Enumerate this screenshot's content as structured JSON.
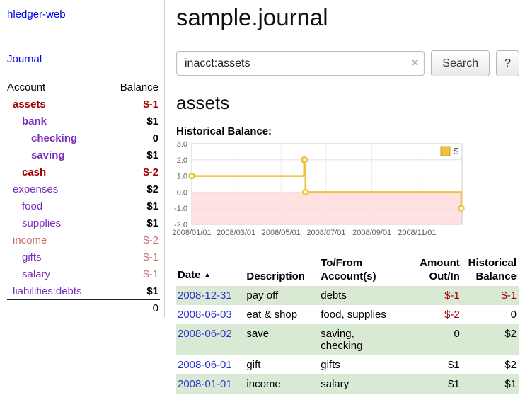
{
  "colors": {
    "purple": "#7a2bbc",
    "red": "#a00000",
    "pink": "#c96f75",
    "black": "#000000",
    "link_blue": "#2a36cc",
    "stripe_green": "#d9e9d3",
    "series_gold": "#edc240",
    "negative_region": "#ffe1e1"
  },
  "app": {
    "title": "hledger-web",
    "nav_journal": "Journal"
  },
  "sidebar": {
    "headers": {
      "account": "Account",
      "balance": "Balance"
    },
    "accounts": [
      {
        "name": "assets",
        "balance": "$-1",
        "indent": 0,
        "bold": true,
        "name_color": "red",
        "balance_color": "red",
        "balance_bold": true
      },
      {
        "name": "bank",
        "balance": "$1",
        "indent": 1,
        "bold": true,
        "name_color": "purple",
        "balance_color": "black",
        "balance_bold": true
      },
      {
        "name": "checking",
        "balance": "0",
        "indent": 2,
        "bold": true,
        "name_color": "purple",
        "balance_color": "black",
        "balance_bold": true
      },
      {
        "name": "saving",
        "balance": "$1",
        "indent": 2,
        "bold": true,
        "name_color": "purple",
        "balance_color": "black",
        "balance_bold": true
      },
      {
        "name": "cash",
        "balance": "$-2",
        "indent": 1,
        "bold": true,
        "name_color": "red",
        "balance_color": "red",
        "balance_bold": true
      },
      {
        "name": "expenses",
        "balance": "$2",
        "indent": 0,
        "bold": false,
        "name_color": "purple",
        "balance_color": "black",
        "balance_bold": true
      },
      {
        "name": "food",
        "balance": "$1",
        "indent": 1,
        "bold": false,
        "name_color": "purple",
        "balance_color": "black",
        "balance_bold": true
      },
      {
        "name": "supplies",
        "balance": "$1",
        "indent": 1,
        "bold": false,
        "name_color": "purple",
        "balance_color": "black",
        "balance_bold": true
      },
      {
        "name": "income",
        "balance": "$-2",
        "indent": 0,
        "bold": false,
        "name_color": "pink",
        "balance_color": "pink",
        "balance_bold": false
      },
      {
        "name": "gifts",
        "balance": "$-1",
        "indent": 1,
        "bold": false,
        "name_color": "purple",
        "balance_color": "pink",
        "balance_bold": false
      },
      {
        "name": "salary",
        "balance": "$-1",
        "indent": 1,
        "bold": false,
        "name_color": "purple",
        "balance_color": "pink",
        "balance_bold": false
      },
      {
        "name": "liabilities:debts",
        "balance": "$1",
        "indent": 0,
        "bold": false,
        "name_color": "purple",
        "balance_color": "black",
        "balance_bold": true
      }
    ],
    "total": "0"
  },
  "main": {
    "title": "sample.journal",
    "search": {
      "value": "inacct:assets",
      "clear_icon": "×",
      "button_label": "Search",
      "help_label": "?"
    },
    "account_heading": "assets",
    "chart_label": "Historical Balance:"
  },
  "chart_data": {
    "type": "line",
    "title": "Historical Balance",
    "x_range": [
      "2008-01-01",
      "2009-01-01"
    ],
    "ylim": [
      -2,
      3
    ],
    "y_ticks": [
      3,
      2,
      1,
      0,
      -1,
      -2
    ],
    "x_ticks": [
      {
        "label": "2008/01/01",
        "date": "2008-01-01"
      },
      {
        "label": "2008/03/01",
        "date": "2008-03-01"
      },
      {
        "label": "2008/05/01",
        "date": "2008-05-01"
      },
      {
        "label": "2008/07/01",
        "date": "2008-07-01"
      },
      {
        "label": "2008/09/01",
        "date": "2008-09-01"
      },
      {
        "label": "2008/11/01",
        "date": "2008-11-01"
      }
    ],
    "grid": true,
    "legend_position": "top-right",
    "series": [
      {
        "name": "$",
        "color": "#edc240",
        "step": true,
        "points": [
          {
            "date": "2008-01-01",
            "value": 1
          },
          {
            "date": "2008-06-01",
            "value": 2
          },
          {
            "date": "2008-06-02",
            "value": 2
          },
          {
            "date": "2008-06-03",
            "value": 0
          },
          {
            "date": "2008-12-31",
            "value": -1
          }
        ]
      }
    ]
  },
  "register": {
    "sort_icon": "▲",
    "headers": [
      {
        "lines": [
          "Date"
        ],
        "sortable": true
      },
      {
        "lines": [
          "Description"
        ]
      },
      {
        "lines": [
          "To/From",
          "Account(s)"
        ]
      },
      {
        "lines": [
          "Amount",
          "Out/In"
        ]
      },
      {
        "lines": [
          "Historical",
          "Balance"
        ]
      }
    ],
    "rows": [
      {
        "date": "2008-12-31",
        "description": "pay off",
        "accounts": "debts",
        "amount": "$-1",
        "amount_negative": true,
        "balance": "$-1",
        "balance_negative": true
      },
      {
        "date": "2008-06-03",
        "description": "eat & shop",
        "accounts": "food, supplies",
        "amount": "$-2",
        "amount_negative": true,
        "balance": "0",
        "balance_negative": false
      },
      {
        "date": "2008-06-02",
        "description": "save",
        "accounts": "saving,\nchecking",
        "amount": "0",
        "amount_negative": false,
        "balance": "$2",
        "balance_negative": false
      },
      {
        "date": "2008-06-01",
        "description": "gift",
        "accounts": "gifts",
        "amount": "$1",
        "amount_negative": false,
        "balance": "$2",
        "balance_negative": false
      },
      {
        "date": "2008-01-01",
        "description": "income",
        "accounts": "salary",
        "amount": "$1",
        "amount_negative": false,
        "balance": "$1",
        "balance_negative": false
      }
    ]
  }
}
